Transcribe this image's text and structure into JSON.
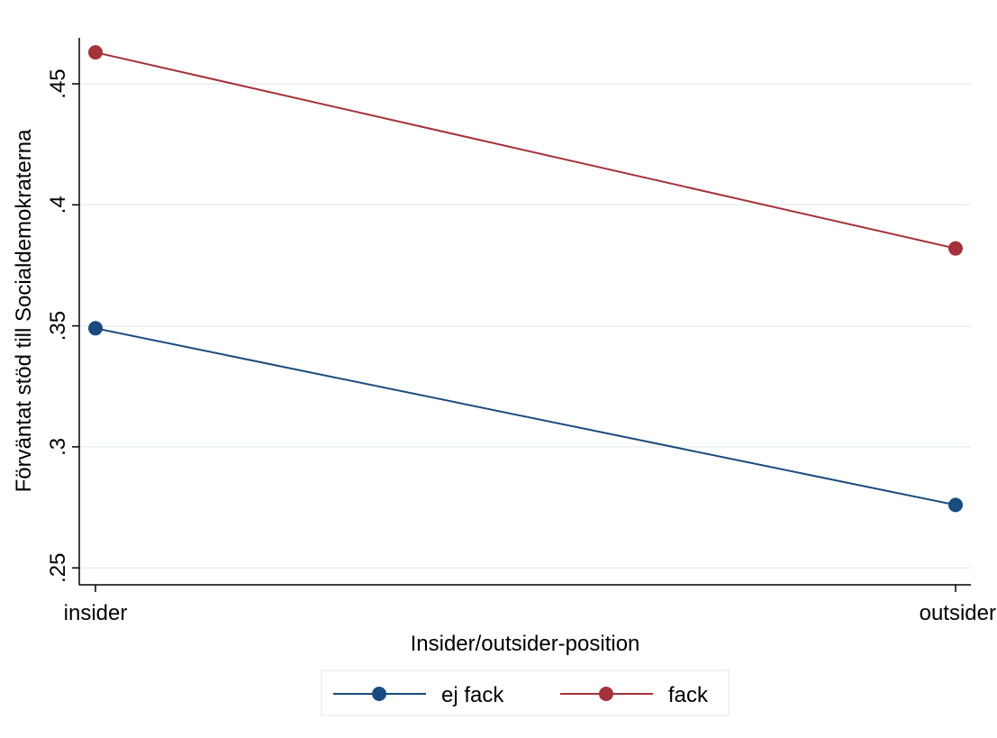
{
  "chart_data": {
    "type": "line",
    "title": "",
    "xlabel": "Insider/outsider-position",
    "ylabel": "Förväntat stöd till Socialdemokraterna",
    "categories": [
      "insider",
      "outsider"
    ],
    "ylim": [
      0.243,
      0.469
    ],
    "yticks": [
      0.25,
      0.3,
      0.35,
      0.4,
      0.45
    ],
    "ytick_labels": [
      ".25",
      ".3",
      ".35",
      ".4",
      ".45"
    ],
    "grid": true,
    "legend_position": "bottom",
    "series": [
      {
        "name": "ej fack",
        "values": [
          0.349,
          0.276
        ],
        "color": "#1a4b7e"
      },
      {
        "name": "fack",
        "values": [
          0.463,
          0.382
        ],
        "color": "#a3323a"
      }
    ]
  }
}
